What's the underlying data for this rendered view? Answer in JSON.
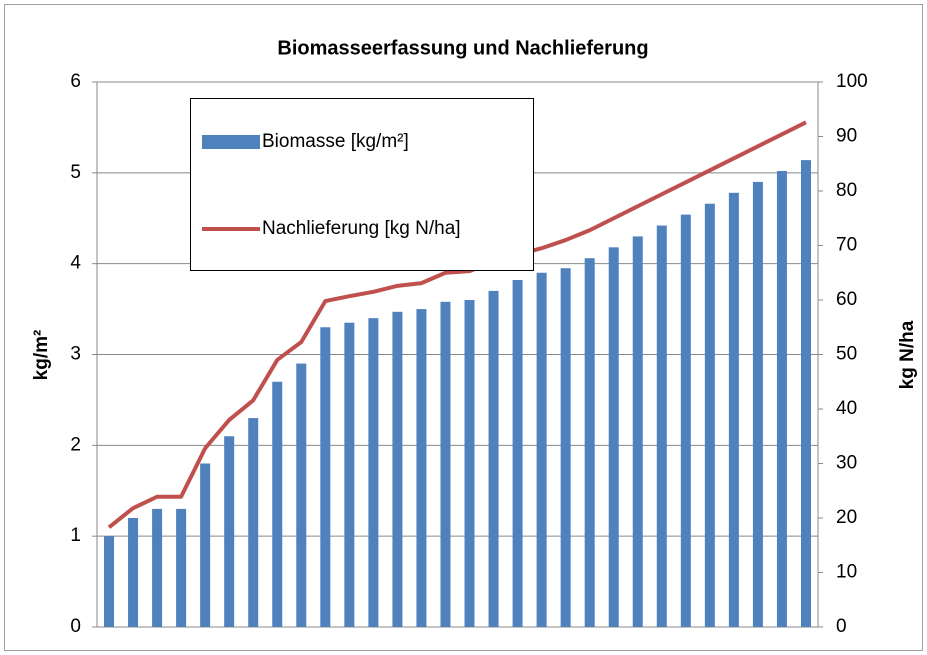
{
  "chart_data": {
    "type": "bar_line",
    "title": "Biomasseerfassung und Nachlieferung",
    "y_label": "kg/m²",
    "y2_label": "kg N/ha",
    "categories": [
      null,
      null,
      null,
      null,
      null,
      null,
      null,
      null,
      null,
      null,
      null,
      null,
      null,
      null,
      null,
      null,
      null,
      null,
      null,
      null,
      null,
      null,
      null,
      null,
      null,
      null,
      null,
      null,
      null,
      null
    ],
    "series": [
      {
        "name": "Biomasse [kg/m²]",
        "type": "bar",
        "color": "#4f81bd",
        "values": [
          1.0,
          1.2,
          1.3,
          1.3,
          1.8,
          2.1,
          2.3,
          2.7,
          2.9,
          3.3,
          3.35,
          3.4,
          3.47,
          3.5,
          3.58,
          3.6,
          3.7,
          3.82,
          3.9,
          3.95,
          4.06,
          4.18,
          4.3,
          4.42,
          4.54,
          4.66,
          4.78,
          4.9,
          5.02,
          5.14
        ]
      },
      {
        "name": "Nachlieferung [kg N/ha]",
        "type": "line",
        "axis": "y2",
        "color": "#c0504d",
        "values": [
          18.3,
          21.8,
          23.9,
          23.9,
          32.8,
          38,
          41.6,
          49,
          52.3,
          59.8,
          60.7,
          61.5,
          62.6,
          63.1,
          65,
          65.3,
          67,
          68.3,
          69.5,
          71,
          72.8,
          75,
          77.2,
          79.4,
          81.6,
          83.8,
          86,
          88.2,
          90.4,
          92.6
        ]
      }
    ],
    "ylim": [
      0,
      6
    ],
    "yticks": [
      0,
      1,
      2,
      3,
      4,
      5,
      6
    ],
    "y2lim": [
      0,
      100
    ],
    "y2ticks": [
      0,
      10,
      20,
      30,
      40,
      50,
      60,
      70,
      80,
      90,
      100
    ],
    "grid": true
  }
}
